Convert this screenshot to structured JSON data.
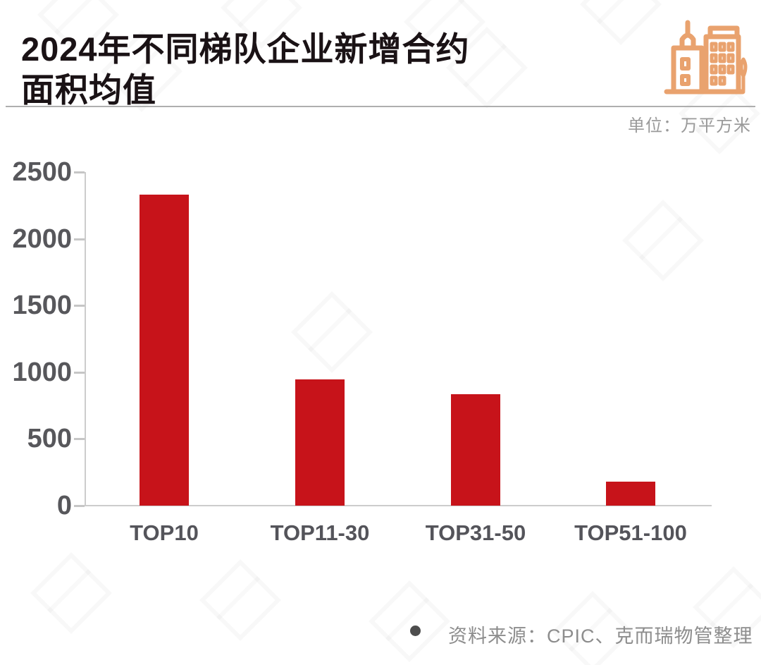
{
  "header": {
    "title_line1": "2024年不同梯队企业新增合约",
    "title_line2": "面积均值",
    "unit_label": "单位：万平方米",
    "icon_name": "buildings-icon",
    "icon_color": "#E9A26E"
  },
  "chart_data": {
    "type": "bar",
    "title": "2024年不同梯队企业新增合约面积均值",
    "categories": [
      "TOP10",
      "TOP11-30",
      "TOP31-50",
      "TOP51-100"
    ],
    "values": [
      2330,
      945,
      835,
      180
    ],
    "xlabel": "",
    "ylabel": "",
    "unit": "万平方米",
    "ylim": [
      0,
      2500
    ],
    "yticks": [
      0,
      500,
      1000,
      1500,
      2000,
      2500
    ],
    "grid": false,
    "legend": "none",
    "bar_color": "#C7131A",
    "axis_color": "#CCCCCC",
    "tick_label_color": "#57575B"
  },
  "footer": {
    "source_text": "资料来源：CPIC、克而瑞物管整理"
  }
}
